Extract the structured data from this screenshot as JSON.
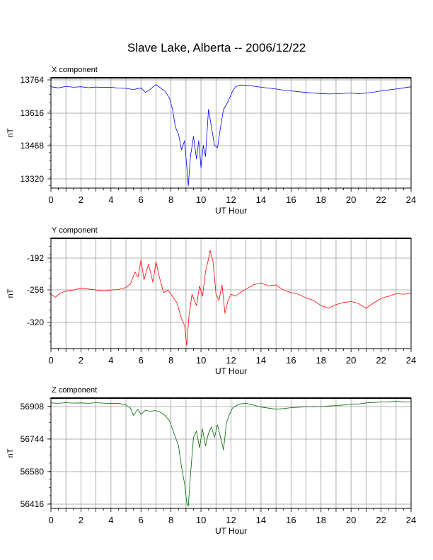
{
  "title": "Slave Lake, Alberta -- 2006/12/22",
  "chart_data": [
    {
      "type": "line",
      "component_label": "X component",
      "title": "Slave Lake, Alberta -- 2006/12/22",
      "xlabel": "UT Hour",
      "ylabel": "nT",
      "xlim": [
        0,
        24
      ],
      "ylim": [
        13290,
        13780
      ],
      "x_ticks": [
        "0",
        "2",
        "4",
        "6",
        "8",
        "10",
        "12",
        "14",
        "16",
        "18",
        "20",
        "22",
        "24"
      ],
      "y_ticks": [
        "13764",
        "13616",
        "13468",
        "13320"
      ],
      "grid": true,
      "color": "#0000ff",
      "series": [
        {
          "x": [
            0,
            0.5,
            1,
            1.5,
            2,
            2.5,
            3,
            3.5,
            4,
            4.5,
            5,
            5.5,
            6,
            6.3,
            6.6,
            7,
            7.3,
            7.6,
            7.9,
            8.1,
            8.3,
            8.5,
            8.7,
            8.9,
            9.05,
            9.15,
            9.3,
            9.5,
            9.7,
            9.85,
            10,
            10.15,
            10.3,
            10.5,
            10.7,
            10.9,
            11.1,
            11.3,
            11.5,
            11.7,
            11.9,
            12.1,
            12.3,
            12.6,
            13,
            13.5,
            14,
            14.5,
            15,
            15.5,
            16,
            16.5,
            17,
            17.5,
            18,
            18.5,
            19,
            19.5,
            20,
            20.5,
            21,
            21.5,
            22,
            22.5,
            23,
            23.5,
            24
          ],
          "values": [
            13740,
            13735,
            13742,
            13738,
            13740,
            13736,
            13739,
            13737,
            13738,
            13734,
            13733,
            13728,
            13735,
            13715,
            13728,
            13750,
            13735,
            13720,
            13690,
            13640,
            13560,
            13530,
            13460,
            13500,
            13390,
            13300,
            13430,
            13520,
            13420,
            13500,
            13380,
            13480,
            13430,
            13640,
            13560,
            13480,
            13470,
            13560,
            13640,
            13660,
            13690,
            13720,
            13740,
            13748,
            13746,
            13743,
            13738,
            13734,
            13730,
            13725,
            13722,
            13718,
            13715,
            13712,
            13710,
            13708,
            13709,
            13711,
            13712,
            13709,
            13712,
            13716,
            13722,
            13726,
            13730,
            13735,
            13740
          ]
        }
      ]
    },
    {
      "type": "line",
      "component_label": "Y component",
      "xlabel": "UT Hour",
      "ylabel": "nT",
      "xlim": [
        0,
        24
      ],
      "ylim": [
        -363,
        -150
      ],
      "x_ticks": [
        "0",
        "2",
        "4",
        "6",
        "8",
        "10",
        "12",
        "14",
        "16",
        "18",
        "20",
        "22",
        "24"
      ],
      "y_ticks": [
        "-192",
        "-256",
        "-320"
      ],
      "grid": true,
      "color": "#ff0000",
      "series": [
        {
          "x": [
            0,
            0.3,
            0.6,
            1,
            1.5,
            2,
            2.5,
            3,
            3.5,
            4,
            4.5,
            5,
            5.3,
            5.6,
            5.8,
            6,
            6.2,
            6.5,
            6.8,
            7,
            7.2,
            7.5,
            7.8,
            8.1,
            8.4,
            8.7,
            8.9,
            9.05,
            9.2,
            9.4,
            9.7,
            9.9,
            10.1,
            10.3,
            10.5,
            10.6,
            10.8,
            11,
            11.2,
            11.4,
            11.6,
            11.8,
            12,
            12.3,
            12.6,
            13,
            13.5,
            14,
            14.5,
            15,
            15.5,
            16,
            16.5,
            17,
            17.5,
            18,
            18.5,
            19,
            19.5,
            20,
            20.5,
            21,
            21.5,
            22,
            22.5,
            23,
            23.5,
            24
          ],
          "values": [
            -258,
            -264,
            -256,
            -252,
            -250,
            -246,
            -248,
            -250,
            -252,
            -250,
            -249,
            -245,
            -238,
            -215,
            -225,
            -192,
            -230,
            -200,
            -235,
            -195,
            -222,
            -255,
            -250,
            -262,
            -275,
            -305,
            -318,
            -357,
            -300,
            -258,
            -280,
            -242,
            -262,
            -215,
            -190,
            -173,
            -195,
            -258,
            -270,
            -240,
            -295,
            -270,
            -258,
            -262,
            -255,
            -248,
            -240,
            -236,
            -242,
            -240,
            -250,
            -255,
            -258,
            -265,
            -270,
            -280,
            -285,
            -278,
            -274,
            -272,
            -276,
            -285,
            -275,
            -266,
            -262,
            -257,
            -258,
            -256
          ]
        }
      ]
    },
    {
      "type": "line",
      "component_label": "Z component",
      "xlabel": "UT Hour",
      "ylabel": "nT",
      "xlim": [
        0,
        24
      ],
      "ylim": [
        56400,
        56928
      ],
      "x_ticks": [
        "0",
        "2",
        "4",
        "6",
        "8",
        "10",
        "12",
        "14",
        "16",
        "18",
        "20",
        "22",
        "24"
      ],
      "y_ticks": [
        "56908",
        "56744",
        "56580",
        "56416"
      ],
      "grid": true,
      "color": "#006600",
      "series": [
        {
          "x": [
            0,
            0.5,
            1,
            1.5,
            2,
            2.5,
            3,
            3.5,
            4,
            4.5,
            5,
            5.3,
            5.5,
            5.8,
            6,
            6.3,
            6.6,
            7,
            7.3,
            7.6,
            7.9,
            8.2,
            8.5,
            8.7,
            8.9,
            9.05,
            9.15,
            9.3,
            9.5,
            9.7,
            9.9,
            10.1,
            10.3,
            10.5,
            10.7,
            10.9,
            11.1,
            11.3,
            11.5,
            11.7,
            11.9,
            12.1,
            12.3,
            12.6,
            13,
            13.5,
            14,
            14.5,
            15,
            15.5,
            16,
            16.5,
            17,
            17.5,
            18,
            18.5,
            19,
            19.5,
            20,
            20.5,
            21,
            21.5,
            22,
            22.5,
            23,
            23.5,
            24
          ],
          "values": [
            56905,
            56903,
            56906,
            56904,
            56905,
            56903,
            56906,
            56904,
            56902,
            56903,
            56895,
            56880,
            56845,
            56875,
            56850,
            56870,
            56865,
            56868,
            56860,
            56845,
            56820,
            56760,
            56700,
            56600,
            56520,
            56430,
            56410,
            56560,
            56740,
            56770,
            56690,
            56780,
            56700,
            56760,
            56790,
            56740,
            56800,
            56740,
            56680,
            56810,
            56850,
            56880,
            56890,
            56900,
            56903,
            56895,
            56885,
            56880,
            56875,
            56878,
            56882,
            56884,
            56886,
            56888,
            56887,
            56890,
            56892,
            56895,
            56898,
            56900,
            56905,
            56907,
            56909,
            56910,
            56912,
            56910,
            56909
          ]
        }
      ]
    }
  ]
}
